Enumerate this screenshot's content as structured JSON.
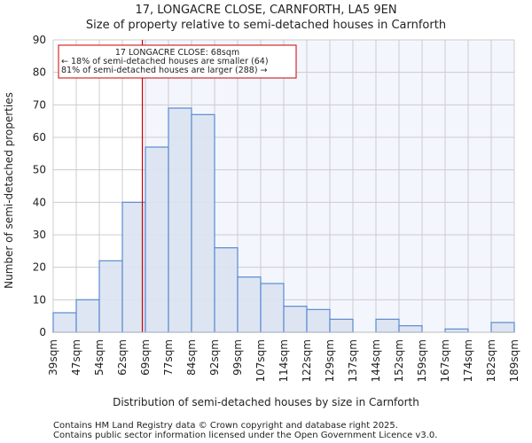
{
  "chart_data": {
    "type": "bar",
    "title": "17, LONGACRE CLOSE, CARNFORTH, LA5 9EN",
    "subtitle": "Size of property relative to semi-detached houses in Carnforth",
    "xlabel": "Distribution of semi-detached houses by size in Carnforth",
    "ylabel": "Number of semi-detached properties",
    "bin_edges": [
      "39sqm",
      "47sqm",
      "54sqm",
      "62sqm",
      "69sqm",
      "77sqm",
      "84sqm",
      "92sqm",
      "99sqm",
      "107sqm",
      "114sqm",
      "122sqm",
      "129sqm",
      "137sqm",
      "144sqm",
      "152sqm",
      "159sqm",
      "167sqm",
      "174sqm",
      "182sqm",
      "189sqm"
    ],
    "bin_edge_values": [
      39,
      46.5,
      54,
      61.5,
      69,
      76.5,
      84,
      91.5,
      99,
      106.5,
      114,
      121.5,
      129,
      136.5,
      144,
      151.5,
      159,
      166.5,
      174,
      181.5,
      189
    ],
    "values": [
      6,
      10,
      22,
      40,
      57,
      69,
      67,
      26,
      17,
      15,
      8,
      7,
      4,
      0,
      4,
      2,
      0,
      1,
      0,
      3
    ],
    "ylim": [
      0,
      90
    ],
    "yticks": [
      0,
      10,
      20,
      30,
      40,
      50,
      60,
      70,
      80,
      90
    ],
    "grid": true,
    "property_marker": {
      "value": 68,
      "color": "#cc0000"
    },
    "annotation": {
      "line1": "17 LONGACRE CLOSE: 68sqm",
      "line2": "← 18% of semi-detached houses are smaller (64)",
      "line3": "81% of semi-detached houses are larger (288) →"
    },
    "colors": {
      "bar_fill": "#dae3f2",
      "bar_edge": "#5b8ad0",
      "highlight_bg": "#f3f6fd",
      "grid": "#cccccc"
    }
  },
  "footer": {
    "line1": "Contains HM Land Registry data © Crown copyright and database right 2025.",
    "line2": "Contains public sector information licensed under the Open Government Licence v3.0."
  }
}
